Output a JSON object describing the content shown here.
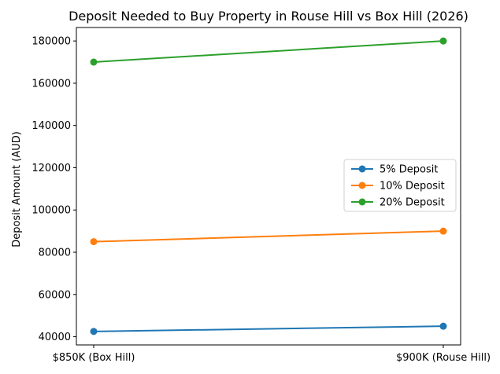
{
  "chart_data": {
    "type": "line",
    "title": "Deposit Needed to Buy Property in Rouse Hill vs Box Hill (2026)",
    "xlabel": "",
    "ylabel": "Deposit Amount (AUD)",
    "categories": [
      "$850K (Box Hill)",
      "$900K (Rouse Hill)"
    ],
    "series": [
      {
        "name": "5% Deposit",
        "values": [
          42500,
          45000
        ],
        "color": "#1f77b4"
      },
      {
        "name": "10% Deposit",
        "values": [
          85000,
          90000
        ],
        "color": "#ff7f0e"
      },
      {
        "name": "20% Deposit",
        "values": [
          170000,
          180000
        ],
        "color": "#2ca02c"
      }
    ],
    "ylim": [
      36125,
      186375
    ],
    "yticks": [
      40000,
      60000,
      80000,
      100000,
      120000,
      140000,
      160000,
      180000
    ],
    "grid": false,
    "legend_position": "center-right"
  }
}
